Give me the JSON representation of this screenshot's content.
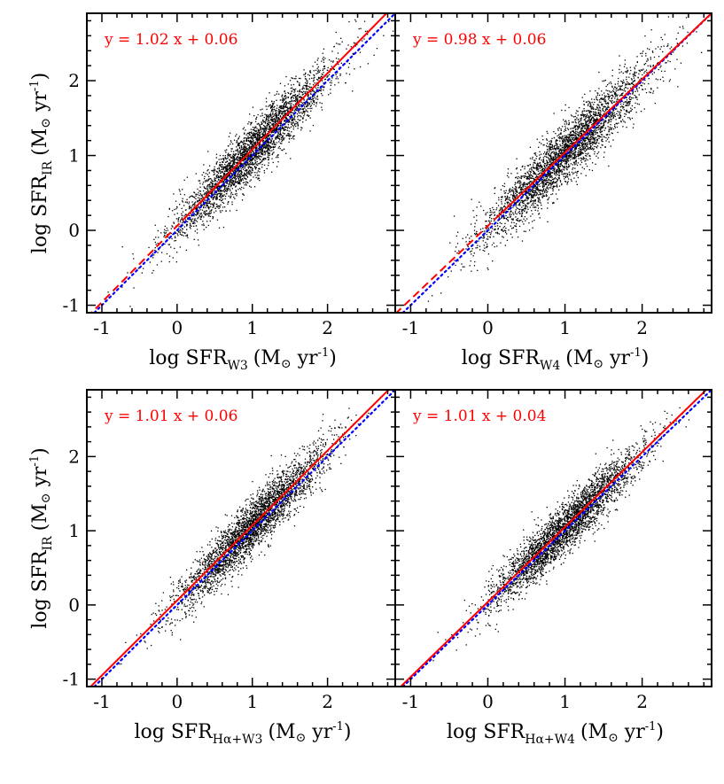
{
  "figure": {
    "background": "#ffffff",
    "fit_color": "#ff0000",
    "one_to_one_color": "#0000ff",
    "point_color": "#000000"
  },
  "chart_data": [
    {
      "type": "scatter",
      "panel": "top-left",
      "xlabel": {
        "main": "log SFR",
        "sub": "W3",
        "unit": "(M",
        "sun": "⊙",
        "unit2": " yr",
        "sup": "-1",
        "close": ")"
      },
      "ylabel": {
        "main": "log SFR",
        "sub": "IR",
        "unit": "(M",
        "sun": "⊙",
        "unit2": " yr",
        "sup": "-1",
        "close": ")"
      },
      "annotation": "y = 1.02 x + 0.06",
      "fit": {
        "slope": 1.02,
        "intercept": 0.06
      },
      "xlim": [
        -1.2,
        2.9
      ],
      "ylim": [
        -1.1,
        2.9
      ],
      "xticks": [
        -1,
        0,
        1,
        2
      ],
      "yticks": [
        -1,
        0,
        1,
        2
      ],
      "scatter_center": [
        1.0,
        1.1
      ],
      "scatter_spread": [
        0.55,
        0.18
      ]
    },
    {
      "type": "scatter",
      "panel": "top-right",
      "xlabel": {
        "main": "log SFR",
        "sub": "W4",
        "unit": "(M",
        "sun": "⊙",
        "unit2": " yr",
        "sup": "-1",
        "close": ")"
      },
      "ylabel": null,
      "annotation": "y = 0.98 x + 0.06",
      "fit": {
        "slope": 0.98,
        "intercept": 0.06
      },
      "xlim": [
        -1.2,
        2.9
      ],
      "ylim": [
        -1.1,
        2.9
      ],
      "xticks": [
        -1,
        0,
        1,
        2
      ],
      "yticks": [
        -1,
        0,
        1,
        2
      ],
      "scatter_center": [
        1.0,
        1.05
      ],
      "scatter_spread": [
        0.55,
        0.2
      ]
    },
    {
      "type": "scatter",
      "panel": "bottom-left",
      "xlabel": {
        "main": "log SFR",
        "sub": "Hα+W3",
        "unit": "(M",
        "sun": "⊙",
        "unit2": " yr",
        "sup": "-1",
        "close": ")"
      },
      "ylabel": {
        "main": "log SFR",
        "sub": "IR",
        "unit": "(M",
        "sun": "⊙",
        "unit2": " yr",
        "sup": "-1",
        "close": ")"
      },
      "annotation": "y = 1.01 x + 0.06",
      "fit": {
        "slope": 1.01,
        "intercept": 0.06
      },
      "xlim": [
        -1.2,
        2.9
      ],
      "ylim": [
        -1.1,
        2.9
      ],
      "xticks": [
        -1,
        0,
        1,
        2
      ],
      "yticks": [
        -1,
        0,
        1,
        2
      ],
      "scatter_center": [
        1.0,
        1.05
      ],
      "scatter_spread": [
        0.5,
        0.18
      ]
    },
    {
      "type": "scatter",
      "panel": "bottom-right",
      "xlabel": {
        "main": "log SFR",
        "sub": "Hα+W4",
        "unit": "(M",
        "sun": "⊙",
        "unit2": " yr",
        "sup": "-1",
        "close": ")"
      },
      "ylabel": null,
      "annotation": "y = 1.01 x + 0.04",
      "fit": {
        "slope": 1.01,
        "intercept": 0.04
      },
      "xlim": [
        -1.2,
        2.9
      ],
      "ylim": [
        -1.1,
        2.9
      ],
      "xticks": [
        -1,
        0,
        1,
        2
      ],
      "yticks": [
        -1,
        0,
        1,
        2
      ],
      "scatter_center": [
        1.0,
        1.05
      ],
      "scatter_spread": [
        0.5,
        0.17
      ]
    }
  ]
}
